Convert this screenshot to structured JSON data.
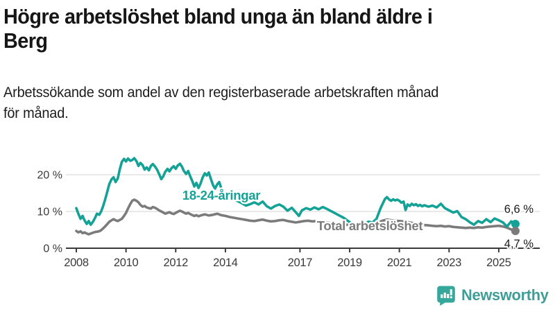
{
  "header": {
    "title_lines": [
      "Högre arbetslöshet bland unga än bland äldre i",
      "Berg"
    ],
    "subtitle_lines": [
      "Arbetssökande som andel av den registerbaserade arbetskraften månad",
      "för månad."
    ]
  },
  "chart_data": {
    "type": "line",
    "title": "Högre arbetslöshet bland unga än bland äldre i Berg",
    "subtitle": "Arbetssökande som andel av den registerbaserade arbetskraften månad för månad.",
    "unit": "percent of registered labour force",
    "x_axis": {
      "min": 2008,
      "max": 2026,
      "ticks": [
        2008,
        2010,
        2012,
        2014,
        2017,
        2019,
        2021,
        2023,
        2025
      ]
    },
    "y_axis": {
      "min": 0,
      "max": 27,
      "ticks": [
        0,
        10,
        20
      ],
      "tick_labels": [
        "0 %",
        "10 %",
        "20 %"
      ],
      "gridlines": true
    },
    "legend_position": "inline-labels",
    "series": [
      {
        "name": "18-24-åringar",
        "color": "#14a296",
        "end_value": 6.6,
        "end_label": "6,6 %",
        "points": [
          [
            2008.0,
            10.9
          ],
          [
            2008.08,
            9.4
          ],
          [
            2008.17,
            8.0
          ],
          [
            2008.25,
            8.8
          ],
          [
            2008.33,
            7.6
          ],
          [
            2008.42,
            6.6
          ],
          [
            2008.5,
            7.4
          ],
          [
            2008.58,
            6.4
          ],
          [
            2008.67,
            7.2
          ],
          [
            2008.75,
            8.2
          ],
          [
            2008.83,
            9.4
          ],
          [
            2008.92,
            9.1
          ],
          [
            2009.0,
            10.0
          ],
          [
            2009.08,
            11.5
          ],
          [
            2009.17,
            13.5
          ],
          [
            2009.25,
            15.5
          ],
          [
            2009.33,
            17.5
          ],
          [
            2009.42,
            18.8
          ],
          [
            2009.5,
            19.3
          ],
          [
            2009.58,
            18.0
          ],
          [
            2009.67,
            19.0
          ],
          [
            2009.75,
            21.5
          ],
          [
            2009.83,
            23.5
          ],
          [
            2009.92,
            24.3
          ],
          [
            2010.0,
            23.6
          ],
          [
            2010.08,
            24.4
          ],
          [
            2010.17,
            23.8
          ],
          [
            2010.25,
            24.0
          ],
          [
            2010.33,
            24.5
          ],
          [
            2010.42,
            23.7
          ],
          [
            2010.5,
            22.4
          ],
          [
            2010.58,
            23.2
          ],
          [
            2010.67,
            22.6
          ],
          [
            2010.75,
            21.4
          ],
          [
            2010.83,
            22.0
          ],
          [
            2010.92,
            21.2
          ],
          [
            2011.0,
            22.4
          ],
          [
            2011.08,
            22.9
          ],
          [
            2011.17,
            22.2
          ],
          [
            2011.25,
            21.4
          ],
          [
            2011.33,
            20.2
          ],
          [
            2011.42,
            18.8
          ],
          [
            2011.5,
            19.6
          ],
          [
            2011.58,
            20.8
          ],
          [
            2011.67,
            21.6
          ],
          [
            2011.75,
            20.9
          ],
          [
            2011.83,
            21.8
          ],
          [
            2011.92,
            22.3
          ],
          [
            2012.0,
            21.6
          ],
          [
            2012.08,
            22.5
          ],
          [
            2012.17,
            23.0
          ],
          [
            2012.25,
            22.2
          ],
          [
            2012.33,
            21.0
          ],
          [
            2012.42,
            20.2
          ],
          [
            2012.5,
            21.0
          ],
          [
            2012.58,
            19.6
          ],
          [
            2012.67,
            18.2
          ],
          [
            2012.75,
            16.8
          ],
          [
            2012.83,
            17.8
          ],
          [
            2012.92,
            16.4
          ],
          [
            2013.0,
            17.6
          ],
          [
            2013.08,
            19.2
          ],
          [
            2013.17,
            20.4
          ],
          [
            2013.25,
            19.8
          ],
          [
            2013.33,
            20.6
          ],
          [
            2013.42,
            18.8
          ],
          [
            2013.5,
            17.2
          ],
          [
            2013.58,
            16.2
          ],
          [
            2013.67,
            17.4
          ],
          [
            2013.75,
            18.0
          ],
          [
            2013.83,
            16.4
          ],
          [
            2013.92,
            15.4
          ],
          [
            2014.0,
            14.8
          ],
          [
            2014.17,
            14.0
          ],
          [
            2014.33,
            13.4
          ],
          [
            2014.5,
            12.8
          ],
          [
            2014.67,
            12.2
          ],
          [
            2014.83,
            11.6
          ],
          [
            2015.0,
            12.0
          ],
          [
            2015.17,
            12.5
          ],
          [
            2015.33,
            11.9
          ],
          [
            2015.5,
            12.7
          ],
          [
            2015.67,
            11.4
          ],
          [
            2015.83,
            10.8
          ],
          [
            2016.0,
            11.5
          ],
          [
            2016.17,
            11.9
          ],
          [
            2016.33,
            11.3
          ],
          [
            2016.5,
            10.2
          ],
          [
            2016.67,
            11.0
          ],
          [
            2016.83,
            9.8
          ],
          [
            2016.96,
            8.8
          ],
          [
            2017.08,
            10.3
          ],
          [
            2017.25,
            10.9
          ],
          [
            2017.42,
            10.5
          ],
          [
            2017.58,
            11.1
          ],
          [
            2017.75,
            10.6
          ],
          [
            2017.92,
            11.2
          ],
          [
            2018.08,
            10.7
          ],
          [
            2018.25,
            10.1
          ],
          [
            2018.42,
            9.5
          ],
          [
            2018.58,
            8.9
          ],
          [
            2018.75,
            8.3
          ],
          [
            2018.92,
            7.5
          ],
          [
            2019.08,
            6.7
          ],
          [
            2019.25,
            6.3
          ],
          [
            2019.42,
            6.9
          ],
          [
            2019.58,
            6.5
          ],
          [
            2019.75,
            7.2
          ],
          [
            2019.92,
            7.0
          ],
          [
            2020.08,
            8.0
          ],
          [
            2020.25,
            11.0
          ],
          [
            2020.42,
            13.4
          ],
          [
            2020.5,
            13.9
          ],
          [
            2020.58,
            13.3
          ],
          [
            2020.67,
            12.9
          ],
          [
            2020.75,
            13.3
          ],
          [
            2020.83,
            13.0
          ],
          [
            2020.92,
            13.2
          ],
          [
            2021.0,
            12.9
          ],
          [
            2021.08,
            12.4
          ],
          [
            2021.17,
            12.7
          ],
          [
            2021.25,
            10.4
          ],
          [
            2021.33,
            11.9
          ],
          [
            2021.42,
            11.5
          ],
          [
            2021.5,
            12.1
          ],
          [
            2021.58,
            11.7
          ],
          [
            2021.67,
            12.0
          ],
          [
            2021.75,
            11.5
          ],
          [
            2021.83,
            11.8
          ],
          [
            2021.92,
            11.4
          ],
          [
            2022.0,
            11.7
          ],
          [
            2022.17,
            11.3
          ],
          [
            2022.33,
            11.6
          ],
          [
            2022.5,
            11.1
          ],
          [
            2022.67,
            12.1
          ],
          [
            2022.83,
            10.9
          ],
          [
            2023.0,
            10.3
          ],
          [
            2023.17,
            9.7
          ],
          [
            2023.33,
            10.1
          ],
          [
            2023.5,
            8.5
          ],
          [
            2023.67,
            7.9
          ],
          [
            2023.83,
            7.1
          ],
          [
            2024.0,
            6.4
          ],
          [
            2024.17,
            7.4
          ],
          [
            2024.33,
            6.9
          ],
          [
            2024.5,
            7.9
          ],
          [
            2024.67,
            7.1
          ],
          [
            2024.83,
            8.1
          ],
          [
            2025.0,
            7.6
          ],
          [
            2025.17,
            7.0
          ],
          [
            2025.33,
            5.9
          ],
          [
            2025.5,
            7.3
          ],
          [
            2025.67,
            6.6
          ]
        ]
      },
      {
        "name": "Total arbetslöshet",
        "color": "#7b7b7b",
        "end_value": 4.7,
        "end_label": "4,7 %",
        "points": [
          [
            2008.0,
            4.7
          ],
          [
            2008.08,
            4.3
          ],
          [
            2008.17,
            4.6
          ],
          [
            2008.25,
            4.1
          ],
          [
            2008.33,
            4.3
          ],
          [
            2008.42,
            4.0
          ],
          [
            2008.5,
            3.8
          ],
          [
            2008.58,
            4.0
          ],
          [
            2008.67,
            4.2
          ],
          [
            2008.75,
            4.4
          ],
          [
            2008.83,
            4.5
          ],
          [
            2008.92,
            4.6
          ],
          [
            2009.0,
            4.9
          ],
          [
            2009.08,
            5.4
          ],
          [
            2009.17,
            6.0
          ],
          [
            2009.25,
            6.6
          ],
          [
            2009.33,
            7.2
          ],
          [
            2009.42,
            7.6
          ],
          [
            2009.5,
            7.9
          ],
          [
            2009.58,
            7.6
          ],
          [
            2009.67,
            7.4
          ],
          [
            2009.75,
            7.7
          ],
          [
            2009.83,
            8.0
          ],
          [
            2009.92,
            8.8
          ],
          [
            2010.0,
            9.6
          ],
          [
            2010.08,
            10.8
          ],
          [
            2010.17,
            12.0
          ],
          [
            2010.25,
            12.9
          ],
          [
            2010.33,
            13.2
          ],
          [
            2010.42,
            12.9
          ],
          [
            2010.5,
            12.5
          ],
          [
            2010.58,
            11.8
          ],
          [
            2010.67,
            11.3
          ],
          [
            2010.75,
            11.5
          ],
          [
            2010.83,
            11.1
          ],
          [
            2010.92,
            10.9
          ],
          [
            2011.0,
            10.8
          ],
          [
            2011.08,
            11.2
          ],
          [
            2011.17,
            11.0
          ],
          [
            2011.25,
            10.7
          ],
          [
            2011.33,
            10.3
          ],
          [
            2011.42,
            10.0
          ],
          [
            2011.5,
            9.7
          ],
          [
            2011.58,
            9.4
          ],
          [
            2011.67,
            9.6
          ],
          [
            2011.75,
            9.8
          ],
          [
            2011.83,
            9.5
          ],
          [
            2011.92,
            9.3
          ],
          [
            2012.0,
            9.6
          ],
          [
            2012.08,
            9.9
          ],
          [
            2012.17,
            10.2
          ],
          [
            2012.25,
            10.0
          ],
          [
            2012.33,
            9.7
          ],
          [
            2012.42,
            9.4
          ],
          [
            2012.5,
            9.6
          ],
          [
            2012.58,
            9.3
          ],
          [
            2012.67,
            9.0
          ],
          [
            2012.75,
            8.8
          ],
          [
            2012.83,
            9.0
          ],
          [
            2012.92,
            8.7
          ],
          [
            2013.0,
            8.9
          ],
          [
            2013.17,
            9.2
          ],
          [
            2013.33,
            8.9
          ],
          [
            2013.5,
            9.1
          ],
          [
            2013.67,
            9.4
          ],
          [
            2013.83,
            9.0
          ],
          [
            2014.0,
            8.8
          ],
          [
            2014.17,
            8.5
          ],
          [
            2014.33,
            8.3
          ],
          [
            2014.5,
            8.1
          ],
          [
            2014.67,
            7.9
          ],
          [
            2014.83,
            7.7
          ],
          [
            2015.0,
            7.5
          ],
          [
            2015.17,
            7.4
          ],
          [
            2015.33,
            7.6
          ],
          [
            2015.5,
            7.8
          ],
          [
            2015.67,
            7.5
          ],
          [
            2015.83,
            7.3
          ],
          [
            2016.0,
            7.4
          ],
          [
            2016.17,
            7.6
          ],
          [
            2016.33,
            7.7
          ],
          [
            2016.5,
            7.4
          ],
          [
            2016.67,
            7.2
          ],
          [
            2016.83,
            7.0
          ],
          [
            2017.0,
            7.2
          ],
          [
            2017.17,
            7.4
          ],
          [
            2017.33,
            7.5
          ],
          [
            2017.5,
            7.3
          ],
          [
            2017.67,
            7.4
          ],
          [
            2017.83,
            7.2
          ],
          [
            2018.0,
            7.0
          ],
          [
            2018.17,
            6.9
          ],
          [
            2018.33,
            6.8
          ],
          [
            2018.5,
            6.6
          ],
          [
            2018.67,
            6.5
          ],
          [
            2018.83,
            6.4
          ],
          [
            2019.0,
            6.3
          ],
          [
            2019.17,
            6.2
          ],
          [
            2019.33,
            6.4
          ],
          [
            2019.5,
            6.5
          ],
          [
            2019.67,
            6.4
          ],
          [
            2019.83,
            6.5
          ],
          [
            2020.0,
            6.6
          ],
          [
            2020.17,
            7.1
          ],
          [
            2020.33,
            7.5
          ],
          [
            2020.5,
            7.8
          ],
          [
            2020.67,
            7.6
          ],
          [
            2020.83,
            7.5
          ],
          [
            2021.0,
            7.4
          ],
          [
            2021.17,
            7.3
          ],
          [
            2021.33,
            7.1
          ],
          [
            2021.5,
            6.9
          ],
          [
            2021.67,
            6.7
          ],
          [
            2021.83,
            6.5
          ],
          [
            2022.0,
            6.3
          ],
          [
            2022.17,
            6.2
          ],
          [
            2022.33,
            6.1
          ],
          [
            2022.5,
            6.0
          ],
          [
            2022.67,
            6.1
          ],
          [
            2022.83,
            5.9
          ],
          [
            2023.0,
            6.0
          ],
          [
            2023.17,
            5.8
          ],
          [
            2023.33,
            5.7
          ],
          [
            2023.5,
            5.6
          ],
          [
            2023.67,
            5.5
          ],
          [
            2023.83,
            5.6
          ],
          [
            2024.0,
            5.5
          ],
          [
            2024.17,
            5.7
          ],
          [
            2024.33,
            5.6
          ],
          [
            2024.5,
            5.8
          ],
          [
            2024.67,
            5.9
          ],
          [
            2024.83,
            6.0
          ],
          [
            2025.0,
            6.1
          ],
          [
            2025.17,
            5.9
          ],
          [
            2025.33,
            5.6
          ],
          [
            2025.5,
            5.1
          ],
          [
            2025.67,
            4.7
          ]
        ]
      }
    ]
  },
  "footer": {
    "brand": "Newsworthy",
    "logo_icon": "newsworthy-chart-bubble-icon",
    "brand_color": "#3f9d97",
    "logo_color": "#35a79b"
  },
  "colors": {
    "background": "#ffffff",
    "title_text": "#161616",
    "axis": "#3a3a3a",
    "gridline": "#e2e2e2",
    "youth_series": "#14a296",
    "total_series": "#7b7b7b"
  }
}
